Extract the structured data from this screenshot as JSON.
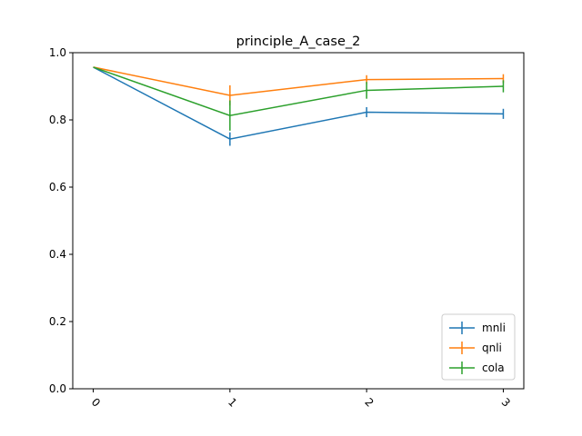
{
  "chart_data": {
    "type": "line",
    "title": "principle_A_case_2",
    "xlabel": "",
    "ylabel": "",
    "x": [
      0,
      1,
      2,
      3
    ],
    "x_tick_labels": [
      "0",
      "1",
      "2",
      "3"
    ],
    "ylim": [
      0.0,
      1.0
    ],
    "y_ticks": [
      "0.0",
      "0.2",
      "0.4",
      "0.6",
      "0.8",
      "1.0"
    ],
    "grid": false,
    "legend_position": "lower-right",
    "series": [
      {
        "name": "mnli",
        "color": "#1f77b4",
        "values": [
          0.957,
          0.743,
          0.823,
          0.818
        ],
        "errors": [
          0.0,
          0.02,
          0.015,
          0.015
        ]
      },
      {
        "name": "qnli",
        "color": "#ff7f0e",
        "values": [
          0.957,
          0.873,
          0.92,
          0.923
        ],
        "errors": [
          0.0,
          0.03,
          0.013,
          0.013
        ]
      },
      {
        "name": "cola",
        "color": "#2ca02c",
        "values": [
          0.957,
          0.813,
          0.888,
          0.9
        ],
        "errors": [
          0.0,
          0.045,
          0.025,
          0.018
        ]
      }
    ]
  }
}
